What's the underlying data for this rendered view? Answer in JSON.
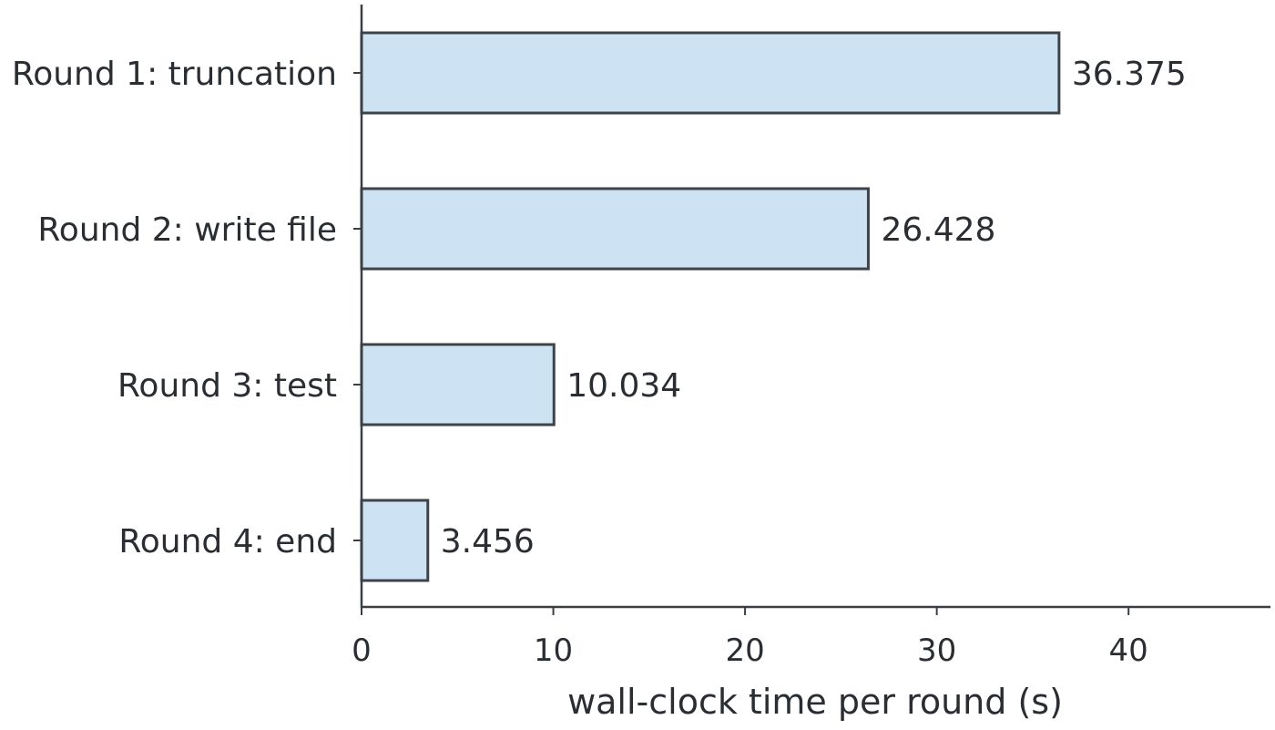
{
  "chart_data": {
    "type": "bar",
    "orientation": "horizontal",
    "categories": [
      "Round 1: truncation",
      "Round 2: write file",
      "Round 3: test",
      "Round 4: end"
    ],
    "values": [
      36.375,
      26.428,
      10.034,
      3.456
    ],
    "value_labels": [
      "36.375",
      "26.428",
      "10.034",
      "3.456"
    ],
    "xlabel": "wall-clock time per round (s)",
    "ylabel": "",
    "xlim": [
      0,
      47.4
    ],
    "xticks": [
      0,
      10,
      20,
      30,
      40
    ],
    "xtick_labels": [
      "0",
      "10",
      "20",
      "30",
      "40"
    ],
    "grid": false,
    "bar_color": "#cde3f3",
    "bar_edge_color": "#3d4348"
  }
}
